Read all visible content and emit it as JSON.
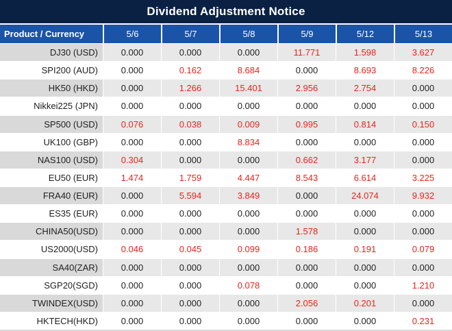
{
  "title": "Dividend Adjustment Notice",
  "colors": {
    "title_bg": "#0b2143",
    "header_bg": "#1b54a6",
    "row_alt_bg": "#e8e8e8",
    "product_alt_bg": "#d9d9d9",
    "highlight_red": "#e8231c",
    "text_dark": "#1f1f1f",
    "header_text": "#ffffff",
    "bottom_edge": "#d9d9d9"
  },
  "chart_data": {
    "type": "table",
    "title": "Dividend Adjustment Notice",
    "product_column_header": "Product / Currency",
    "date_columns": [
      "5/6",
      "5/7",
      "5/8",
      "5/9",
      "5/12",
      "5/13"
    ],
    "rows": [
      {
        "product": "DJ30 (USD)",
        "values": [
          "0.000",
          "0.000",
          "0.000",
          "11.771",
          "1.598",
          "3.627"
        ]
      },
      {
        "product": "SPI200 (AUD)",
        "values": [
          "0.000",
          "0.162",
          "8.684",
          "0.000",
          "8.693",
          "8.226"
        ]
      },
      {
        "product": "HK50 (HKD)",
        "values": [
          "0.000",
          "1.266",
          "15.401",
          "2.956",
          "2.754",
          "0.000"
        ]
      },
      {
        "product": "Nikkei225 (JPN)",
        "values": [
          "0.000",
          "0.000",
          "0.000",
          "0.000",
          "0.000",
          "0.000"
        ]
      },
      {
        "product": "SP500 (USD)",
        "values": [
          "0.076",
          "0.038",
          "0.009",
          "0.995",
          "0.814",
          "0.150"
        ]
      },
      {
        "product": "UK100 (GBP)",
        "values": [
          "0.000",
          "0.000",
          "8.834",
          "0.000",
          "0.000",
          "0.000"
        ]
      },
      {
        "product": "NAS100 (USD)",
        "values": [
          "0.304",
          "0.000",
          "0.000",
          "0.662",
          "3.177",
          "0.000"
        ]
      },
      {
        "product": "EU50 (EUR)",
        "values": [
          "1.474",
          "1.759",
          "4.447",
          "8.543",
          "6.614",
          "3.225"
        ]
      },
      {
        "product": "FRA40 (EUR)",
        "values": [
          "0.000",
          "5.594",
          "3.849",
          "0.000",
          "24.074",
          "9.932"
        ]
      },
      {
        "product": "ES35 (EUR)",
        "values": [
          "0.000",
          "0.000",
          "0.000",
          "0.000",
          "0.000",
          "0.000"
        ]
      },
      {
        "product": "CHINA50(USD)",
        "values": [
          "0.000",
          "0.000",
          "0.000",
          "1.578",
          "0.000",
          "0.000"
        ]
      },
      {
        "product": "US2000(USD)",
        "values": [
          "0.046",
          "0.045",
          "0.099",
          "0.186",
          "0.191",
          "0.079"
        ]
      },
      {
        "product": "SA40(ZAR)",
        "values": [
          "0.000",
          "0.000",
          "0.000",
          "0.000",
          "0.000",
          "0.000"
        ]
      },
      {
        "product": "SGP20(SGD)",
        "values": [
          "0.000",
          "0.000",
          "0.078",
          "0.000",
          "0.000",
          "1.210"
        ]
      },
      {
        "product": "TWINDEX(USD)",
        "values": [
          "0.000",
          "0.000",
          "0.000",
          "2.056",
          "0.201",
          "0.000"
        ]
      },
      {
        "product": "HKTECH(HKD)",
        "values": [
          "0.000",
          "0.000",
          "0.000",
          "0.000",
          "0.000",
          "0.231"
        ]
      }
    ]
  }
}
